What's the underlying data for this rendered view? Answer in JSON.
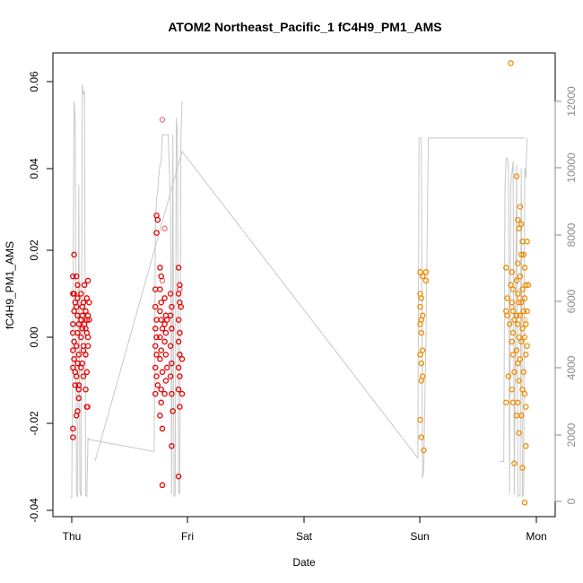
{
  "chart_data": {
    "type": "scatter",
    "title": "ATOM2 Northeast_Pacific_1 fC4H9_PM1_AMS",
    "xlabel": "Date",
    "ylabel": "fC4H9_PM1_AMS",
    "x_ticks": [
      "Thu",
      "Fri",
      "Sat",
      "Sun",
      "Mon"
    ],
    "x_range_days": [
      -0.1,
      4.1
    ],
    "ylim": [
      -0.04,
      0.065
    ],
    "y_ticks": [
      "-0.04",
      "-0.02",
      "0.00",
      "0.02",
      "0.04",
      "0.06"
    ],
    "y2lim": [
      0,
      13000
    ],
    "y2_ticks": [
      "0",
      "2000",
      "4000",
      "6000",
      "8000",
      "10000",
      "12000"
    ],
    "grid": false,
    "legend": "none",
    "colors": {
      "red": "#e60000",
      "orange": "#f08c00",
      "altitude_line": "#c8c8c8"
    },
    "series": [
      {
        "color": "red",
        "points": [
          [
            0.01,
            -0.023
          ],
          [
            0.01,
            -0.021
          ],
          [
            0.02,
            0.019
          ],
          [
            0.01,
            0.014
          ],
          [
            0.02,
            0.01
          ],
          [
            0.01,
            0.01
          ],
          [
            0.03,
            0.008
          ],
          [
            0.02,
            0.006
          ],
          [
            0.01,
            0.003
          ],
          [
            0.01,
            0.001
          ],
          [
            0.02,
            -0.001
          ],
          [
            0.01,
            -0.003
          ],
          [
            0.02,
            -0.005
          ],
          [
            0.01,
            -0.007
          ],
          [
            0.03,
            -0.008
          ],
          [
            0.03,
            -0.011
          ],
          [
            0.04,
            0.014
          ],
          [
            0.05,
            0.012
          ],
          [
            0.05,
            0.009
          ],
          [
            0.04,
            0.007
          ],
          [
            0.05,
            0.005
          ],
          [
            0.06,
            0.003
          ],
          [
            0.05,
            0.001
          ],
          [
            0.04,
            -0.002
          ],
          [
            0.06,
            -0.004
          ],
          [
            0.05,
            -0.006
          ],
          [
            0.04,
            -0.009
          ],
          [
            0.06,
            -0.012
          ],
          [
            0.06,
            -0.014
          ],
          [
            0.05,
            -0.017
          ],
          [
            0.04,
            -0.018
          ],
          [
            0.06,
            -0.011
          ],
          [
            0.08,
            0.01
          ],
          [
            0.09,
            0.007
          ],
          [
            0.08,
            0.004
          ],
          [
            0.09,
            0.002
          ],
          [
            0.08,
            0.0
          ],
          [
            0.1,
            -0.002
          ],
          [
            0.09,
            -0.006
          ],
          [
            0.08,
            -0.007
          ],
          [
            0.1,
            -0.009
          ],
          [
            0.09,
            0.005
          ],
          [
            0.1,
            0.008
          ],
          [
            0.11,
            0.012
          ],
          [
            0.11,
            0.003
          ],
          [
            0.1,
            -0.003
          ],
          [
            0.12,
            0.006
          ],
          [
            0.13,
            0.004
          ],
          [
            0.12,
            0.002
          ],
          [
            0.13,
            0.009
          ],
          [
            0.12,
            -0.004
          ],
          [
            0.13,
            -0.008
          ],
          [
            0.12,
            -0.012
          ],
          [
            0.13,
            -0.016
          ],
          [
            0.14,
            0.013
          ],
          [
            0.14,
            0.005
          ],
          [
            0.14,
            0.0
          ],
          [
            0.15,
            0.004
          ],
          [
            0.14,
            -0.002
          ],
          [
            0.15,
            0.008
          ],
          [
            0.13,
            0.001
          ],
          [
            0.73,
            0.028
          ],
          [
            0.74,
            0.027
          ],
          [
            0.73,
            0.024
          ],
          [
            0.72,
            0.011
          ],
          [
            0.72,
            0.007
          ],
          [
            0.73,
            0.004
          ],
          [
            0.72,
            0.002
          ],
          [
            0.73,
            0.0
          ],
          [
            0.72,
            -0.002
          ],
          [
            0.73,
            -0.004
          ],
          [
            0.72,
            -0.007
          ],
          [
            0.73,
            -0.009
          ],
          [
            0.74,
            -0.011
          ],
          [
            0.72,
            -0.013
          ],
          [
            0.76,
            0.016
          ],
          [
            0.77,
            0.014
          ],
          [
            0.76,
            0.011
          ],
          [
            0.77,
            0.008
          ],
          [
            0.76,
            0.006
          ],
          [
            0.77,
            0.004
          ],
          [
            0.78,
            0.002
          ],
          [
            0.76,
            0.0
          ],
          [
            0.77,
            -0.003
          ],
          [
            0.76,
            -0.005
          ],
          [
            0.78,
            -0.008
          ],
          [
            0.77,
            -0.012
          ],
          [
            0.77,
            -0.015
          ],
          [
            0.76,
            -0.018
          ],
          [
            0.78,
            -0.021
          ],
          [
            0.78,
            -0.034
          ],
          [
            0.8,
            0.009
          ],
          [
            0.81,
            0.005
          ],
          [
            0.8,
            0.003
          ],
          [
            0.81,
            0.001
          ],
          [
            0.8,
            -0.001
          ],
          [
            0.81,
            -0.004
          ],
          [
            0.82,
            -0.007
          ],
          [
            0.81,
            -0.01
          ],
          [
            0.8,
            -0.013
          ],
          [
            0.82,
            0.004
          ],
          [
            0.85,
            0.01
          ],
          [
            0.86,
            0.007
          ],
          [
            0.85,
            0.005
          ],
          [
            0.86,
            0.002
          ],
          [
            0.85,
            -0.002
          ],
          [
            0.86,
            -0.006
          ],
          [
            0.85,
            -0.009
          ],
          [
            0.86,
            -0.013
          ],
          [
            0.86,
            -0.025
          ],
          [
            0.87,
            -0.017
          ],
          [
            0.92,
            0.016
          ],
          [
            0.93,
            0.012
          ],
          [
            0.92,
            0.01
          ],
          [
            0.93,
            0.008
          ],
          [
            0.92,
            0.004
          ],
          [
            0.93,
            0.001
          ],
          [
            0.92,
            -0.001
          ],
          [
            0.93,
            -0.004
          ],
          [
            0.92,
            -0.007
          ],
          [
            0.93,
            -0.009
          ],
          [
            0.92,
            -0.012
          ],
          [
            0.93,
            -0.016
          ],
          [
            0.92,
            -0.032
          ],
          [
            0.94,
            0.007
          ],
          [
            0.95,
            -0.005
          ],
          [
            0.95,
            -0.013
          ]
        ]
      },
      {
        "color": "red",
        "faded": true,
        "points": [
          [
            0.78,
            0.05
          ],
          [
            0.8,
            0.025
          ],
          [
            0.78,
            0.013
          ],
          [
            0.93,
            0.011
          ],
          [
            0.1,
            0.008
          ],
          [
            0.14,
            -0.016
          ]
        ]
      },
      {
        "color": "orange",
        "points": [
          [
            3.0,
            0.015
          ],
          [
            3.02,
            0.014
          ],
          [
            3.0,
            0.01
          ],
          [
            3.01,
            0.009
          ],
          [
            3.0,
            0.007
          ],
          [
            3.02,
            0.005
          ],
          [
            3.01,
            0.004
          ],
          [
            3.0,
            0.003
          ],
          [
            3.01,
            0.001
          ],
          [
            3.02,
            -0.003
          ],
          [
            3.0,
            -0.004
          ],
          [
            3.01,
            -0.006
          ],
          [
            3.02,
            -0.009
          ],
          [
            3.01,
            -0.01
          ],
          [
            3.0,
            -0.019
          ],
          [
            3.01,
            -0.023
          ],
          [
            3.03,
            -0.026
          ],
          [
            3.05,
            0.015
          ],
          [
            3.05,
            0.013
          ],
          [
            3.74,
            0.016
          ],
          [
            3.75,
            0.009
          ],
          [
            3.74,
            0.006
          ],
          [
            3.75,
            0.005
          ],
          [
            3.74,
            -0.015
          ],
          [
            3.76,
            -0.009
          ],
          [
            3.77,
            0.003
          ],
          [
            3.78,
            0.012
          ],
          [
            3.79,
            0.015
          ],
          [
            3.8,
            0.011
          ],
          [
            3.79,
            0.008
          ],
          [
            3.8,
            0.006
          ],
          [
            3.81,
            0.004
          ],
          [
            3.8,
            0.001
          ],
          [
            3.79,
            -0.001
          ],
          [
            3.8,
            -0.004
          ],
          [
            3.81,
            -0.008
          ],
          [
            3.79,
            -0.012
          ],
          [
            3.8,
            -0.015
          ],
          [
            3.81,
            -0.029
          ],
          [
            3.83,
            0.037
          ],
          [
            3.84,
            0.027
          ],
          [
            3.85,
            0.025
          ],
          [
            3.84,
            0.017
          ],
          [
            3.83,
            0.013
          ],
          [
            3.84,
            0.01
          ],
          [
            3.85,
            0.008
          ],
          [
            3.83,
            0.005
          ],
          [
            3.84,
            0.003
          ],
          [
            3.85,
            0.0
          ],
          [
            3.83,
            -0.003
          ],
          [
            3.84,
            -0.006
          ],
          [
            3.85,
            -0.01
          ],
          [
            3.84,
            -0.015
          ],
          [
            3.83,
            -0.018
          ],
          [
            3.85,
            -0.022
          ],
          [
            3.86,
            0.03
          ],
          [
            3.87,
            0.026
          ],
          [
            3.88,
            0.022
          ],
          [
            3.87,
            0.019
          ],
          [
            3.86,
            0.014
          ],
          [
            3.88,
            0.011
          ],
          [
            3.87,
            0.008
          ],
          [
            3.86,
            0.005
          ],
          [
            3.88,
            0.002
          ],
          [
            3.87,
            -0.001
          ],
          [
            3.86,
            -0.005
          ],
          [
            3.88,
            -0.012
          ],
          [
            3.87,
            -0.018
          ],
          [
            3.88,
            -0.03
          ],
          [
            3.89,
            0.019
          ],
          [
            3.9,
            0.016
          ],
          [
            3.91,
            0.012
          ],
          [
            3.9,
            0.009
          ],
          [
            3.89,
            0.006
          ],
          [
            3.91,
            0.003
          ],
          [
            3.9,
            0.0
          ],
          [
            3.91,
            -0.004
          ],
          [
            3.89,
            -0.008
          ],
          [
            3.9,
            -0.013
          ],
          [
            3.91,
            -0.016
          ],
          [
            3.9,
            -0.038
          ],
          [
            3.91,
            -0.025
          ],
          [
            3.92,
            0.006
          ],
          [
            3.92,
            -0.002
          ],
          [
            3.93,
            0.012
          ],
          [
            3.92,
            0.022
          ],
          [
            3.78,
            0.063
          ]
        ]
      },
      {
        "color": "orange",
        "faded": true,
        "points": [
          [
            3.79,
            0.007
          ],
          [
            3.86,
            0.009
          ],
          [
            3.9,
            0.004
          ]
        ]
      }
    ],
    "altitude_series": {
      "axis": "right",
      "color": "altitude_line",
      "points": [
        [
          -0.01,
          100
        ],
        [
          0.0,
          120
        ],
        [
          0.02,
          12000
        ],
        [
          0.03,
          11500
        ],
        [
          0.04,
          200
        ],
        [
          0.05,
          150
        ],
        [
          0.06,
          9500
        ],
        [
          0.07,
          300
        ],
        [
          0.08,
          150
        ],
        [
          0.09,
          12500
        ],
        [
          0.1,
          12200
        ],
        [
          0.11,
          12300
        ],
        [
          0.12,
          200
        ],
        [
          0.13,
          150
        ],
        [
          0.14,
          1900
        ],
        [
          0.15,
          1850
        ],
        [
          0.16,
          1850
        ],
        [
          0.7,
          1500
        ],
        [
          0.71,
          1500
        ],
        [
          0.72,
          8200
        ],
        [
          0.73,
          9100
        ],
        [
          0.74,
          9300
        ],
        [
          0.75,
          9800
        ],
        [
          0.76,
          10100
        ],
        [
          0.77,
          10200
        ],
        [
          0.78,
          11000
        ],
        [
          0.79,
          11000
        ],
        [
          0.8,
          11000
        ],
        [
          0.83,
          11000
        ],
        [
          0.85,
          9000
        ],
        [
          0.86,
          200
        ],
        [
          0.87,
          11000
        ],
        [
          0.88,
          150
        ],
        [
          0.89,
          200
        ],
        [
          0.9,
          11500
        ],
        [
          0.91,
          11000
        ],
        [
          0.92,
          300
        ],
        [
          0.93,
          200
        ],
        [
          0.94,
          11000
        ],
        [
          0.95,
          12000
        ],
        [
          0.2,
          1200
        ],
        [
          0.95,
          10500
        ],
        [
          2.98,
          1300
        ],
        [
          2.99,
          10900
        ],
        [
          3.01,
          10900
        ],
        [
          3.02,
          700
        ],
        [
          3.03,
          900
        ],
        [
          3.05,
          5000
        ],
        [
          3.07,
          10900
        ],
        [
          3.9,
          10900
        ],
        [
          3.68,
          1200
        ],
        [
          3.72,
          1200
        ],
        [
          3.73,
          9300
        ],
        [
          3.74,
          10300
        ],
        [
          3.75,
          10300
        ],
        [
          3.76,
          10000
        ],
        [
          3.77,
          200
        ],
        [
          3.78,
          9500
        ],
        [
          3.8,
          10200
        ],
        [
          3.81,
          200
        ],
        [
          3.83,
          10100
        ],
        [
          3.84,
          150
        ],
        [
          3.86,
          200
        ],
        [
          3.87,
          10000
        ],
        [
          3.88,
          150
        ],
        [
          3.89,
          200
        ],
        [
          3.9,
          10000
        ],
        [
          3.91,
          9700
        ],
        [
          3.92,
          10900
        ]
      ]
    }
  }
}
